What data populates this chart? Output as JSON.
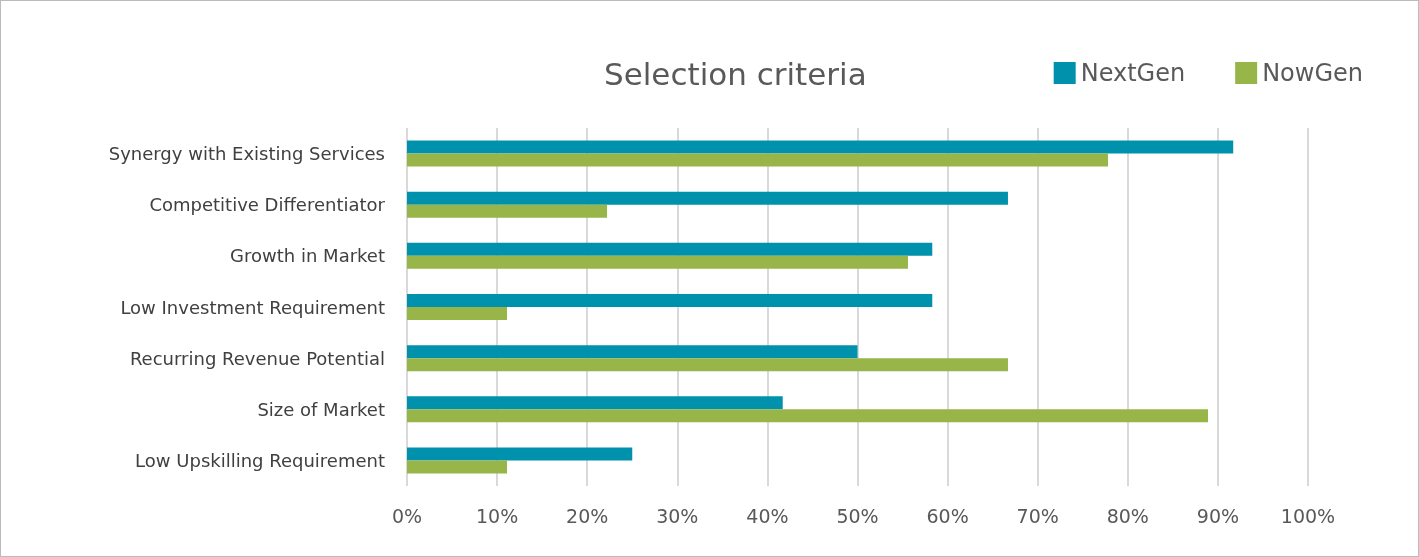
{
  "chart_data": {
    "type": "bar",
    "orientation": "horizontal",
    "title": "Selection criteria",
    "categories": [
      "Synergy with Existing Services",
      "Competitive Differentiator",
      "Growth in Market",
      "Low Investment Requirement",
      "Recurring Revenue Potential",
      "Size of Market",
      "Low Upskilling Requirement"
    ],
    "series": [
      {
        "name": "NextGen",
        "color": "#0091ad",
        "values": [
          91.7,
          66.7,
          58.3,
          58.3,
          50,
          41.7,
          25
        ]
      },
      {
        "name": "NowGen",
        "color": "#97b548",
        "values": [
          77.8,
          22.2,
          55.6,
          11.1,
          66.7,
          88.9,
          11.1
        ]
      }
    ],
    "xlim": [
      0,
      100
    ],
    "xticks": [
      {
        "value": 0,
        "label": "0%"
      },
      {
        "value": 10,
        "label": "10%"
      },
      {
        "value": 20,
        "label": "20%"
      },
      {
        "value": 30,
        "label": "30%"
      },
      {
        "value": 40,
        "label": "40%"
      },
      {
        "value": 50,
        "label": "50%"
      },
      {
        "value": 60,
        "label": "60%"
      },
      {
        "value": 70,
        "label": "70%"
      },
      {
        "value": 80,
        "label": "80%"
      },
      {
        "value": 90,
        "label": "90%"
      },
      {
        "value": 100,
        "label": "100%"
      }
    ],
    "grid": "x",
    "legend": "top right"
  }
}
